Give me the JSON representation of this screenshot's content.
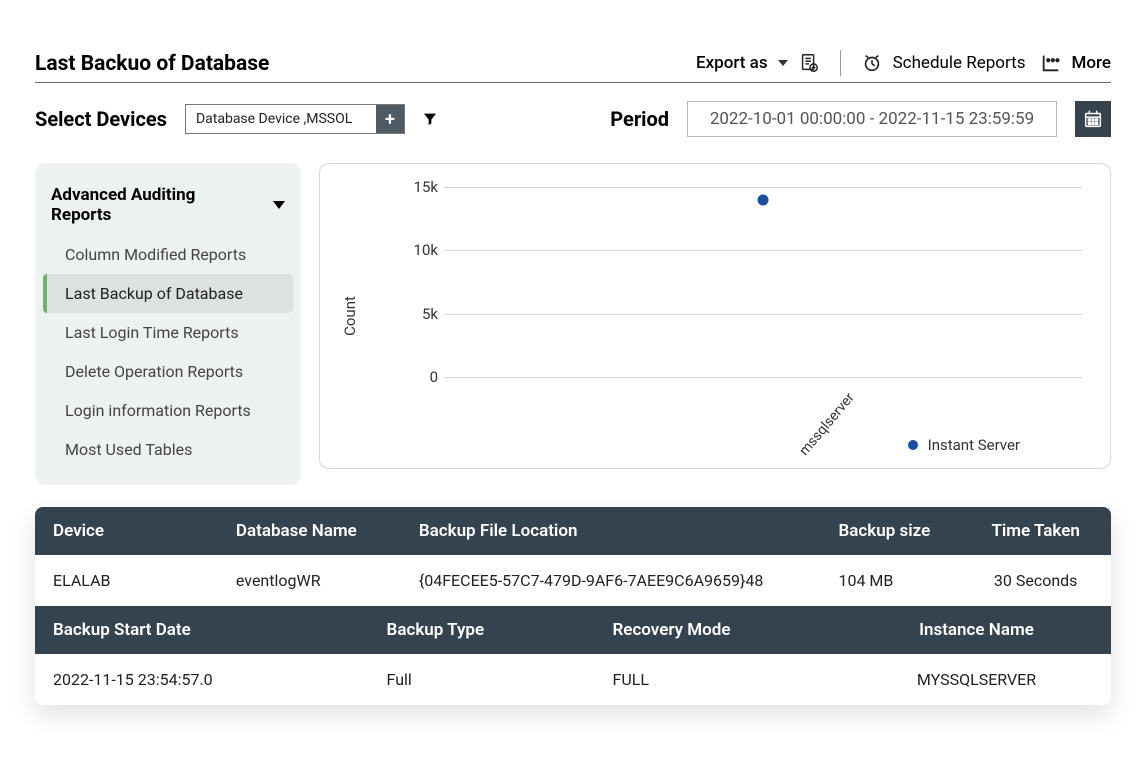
{
  "header": {
    "title": "Last Backuo of Database",
    "export_label": "Export as",
    "schedule_label": "Schedule Reports",
    "more_label": "More"
  },
  "filters": {
    "devices_label": "Select Devices",
    "devices_value": "Database Device ,MSSOL",
    "period_label": "Period",
    "period_value": "2022-10-01 00:00:00 - 2022-11-15 23:59:59"
  },
  "sidebar": {
    "title": "Advanced Auditing Reports",
    "items": [
      {
        "label": "Column Modified Reports",
        "active": false
      },
      {
        "label": "Last Backup of Database",
        "active": true
      },
      {
        "label": "Last Login Time Reports",
        "active": false
      },
      {
        "label": "Delete Operation Reports",
        "active": false
      },
      {
        "label": "Login information Reports",
        "active": false
      },
      {
        "label": "Most Used Tables",
        "active": false
      }
    ]
  },
  "chart": {
    "type": "scatter",
    "y_label": "Count",
    "y_max": 15000,
    "y_min": 0,
    "y_ticks": [
      {
        "value": 0,
        "label": "0"
      },
      {
        "value": 5000,
        "label": "5k"
      },
      {
        "value": 10000,
        "label": "10k"
      },
      {
        "value": 15000,
        "label": "15k"
      }
    ],
    "x_categories": [
      "mssqlserver"
    ],
    "series": [
      {
        "name": "Instant Server",
        "color": "#1a4e9e",
        "points": [
          {
            "x": "mssqlserver",
            "y": 14000
          }
        ]
      }
    ],
    "grid_color": "#d6d6d6",
    "background_color": "#ffffff"
  },
  "tables": {
    "t1": {
      "columns": [
        "Device",
        "Database Name",
        "Backup File Location",
        "Backup size",
        "Time Taken"
      ],
      "rows": [
        [
          "ELALAB",
          "eventlogWR",
          "{04FECEE5-57C7-479D-9AF6-7AEE9C6A9659}48",
          "104 MB",
          "30 Seconds"
        ]
      ]
    },
    "t2": {
      "columns": [
        "Backup Start Date",
        "Backup Type",
        "Recovery Mode",
        "Instance Name"
      ],
      "rows": [
        [
          "2022-11-15 23:54:57.0",
          "Full",
          "FULL",
          "MYSSQLSERVER"
        ]
      ]
    }
  }
}
